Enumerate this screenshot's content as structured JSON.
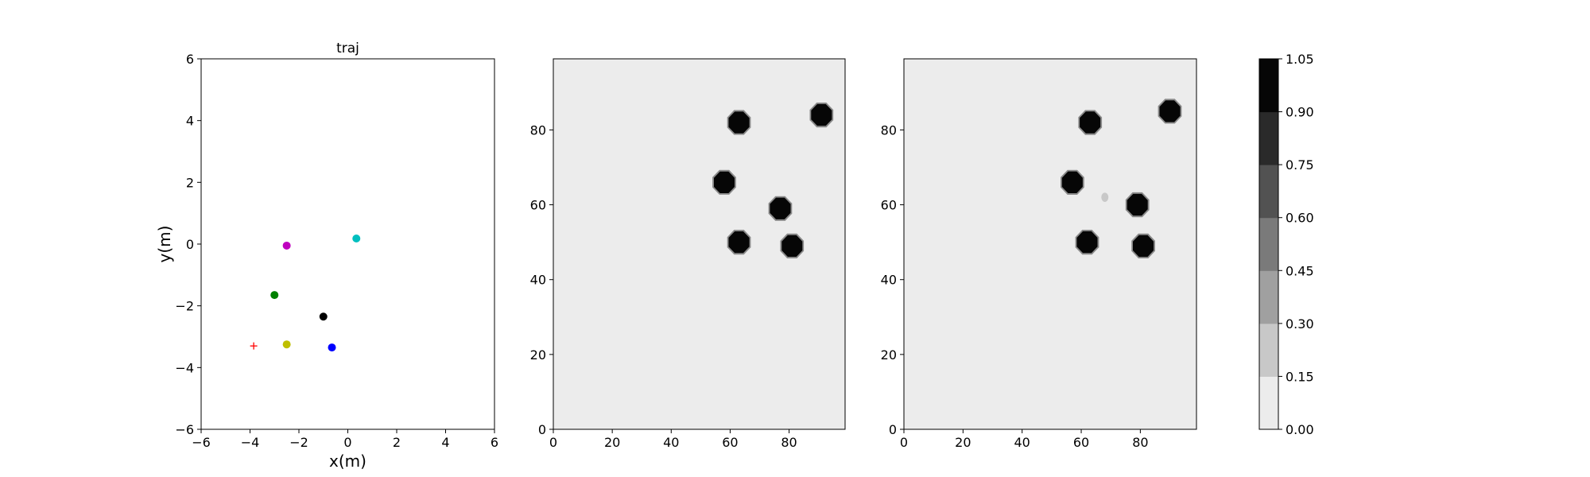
{
  "chart_data": [
    {
      "type": "scatter",
      "title": "traj",
      "xlabel": "x(m)",
      "ylabel": "y(m)",
      "xlim": [
        -6,
        6
      ],
      "ylim": [
        -6,
        6
      ],
      "xticks": [
        "−6",
        "−4",
        "−2",
        "0",
        "2",
        "4",
        "6"
      ],
      "yticks": [
        "−6",
        "−4",
        "−2",
        "0",
        "2",
        "4",
        "6"
      ],
      "grid": false,
      "points": [
        {
          "x": -2.5,
          "y": -0.05,
          "color": "#bf00bf",
          "marker": "circle"
        },
        {
          "x": 0.35,
          "y": 0.18,
          "color": "#00bfbf",
          "marker": "circle"
        },
        {
          "x": -3.0,
          "y": -1.65,
          "color": "#008000",
          "marker": "circle"
        },
        {
          "x": -1.0,
          "y": -2.35,
          "color": "#000000",
          "marker": "circle"
        },
        {
          "x": -2.5,
          "y": -3.25,
          "color": "#bfbf00",
          "marker": "circle"
        },
        {
          "x": -0.65,
          "y": -3.35,
          "color": "#0000ff",
          "marker": "circle"
        },
        {
          "x": -3.85,
          "y": -3.3,
          "color": "#ff0000",
          "marker": "plus"
        }
      ]
    },
    {
      "type": "heatmap",
      "xlim": [
        0,
        99
      ],
      "ylim": [
        0,
        99
      ],
      "xticks": [
        "0",
        "20",
        "40",
        "60",
        "80"
      ],
      "yticks": [
        "0",
        "20",
        "40",
        "60",
        "80"
      ],
      "background_value": 0.05,
      "blobs": [
        {
          "x": 63,
          "y": 82,
          "value": 1.0
        },
        {
          "x": 91,
          "y": 84,
          "value": 1.0
        },
        {
          "x": 58,
          "y": 66,
          "value": 1.0
        },
        {
          "x": 77,
          "y": 59,
          "value": 1.0
        },
        {
          "x": 63,
          "y": 50,
          "value": 1.0
        },
        {
          "x": 81,
          "y": 49,
          "value": 1.0
        }
      ]
    },
    {
      "type": "heatmap",
      "xlim": [
        0,
        99
      ],
      "ylim": [
        0,
        99
      ],
      "xticks": [
        "0",
        "20",
        "40",
        "60",
        "80"
      ],
      "yticks": [
        "0",
        "20",
        "40",
        "60",
        "80"
      ],
      "background_value": 0.05,
      "blobs": [
        {
          "x": 63,
          "y": 82,
          "value": 1.0
        },
        {
          "x": 90,
          "y": 85,
          "value": 0.9
        },
        {
          "x": 57,
          "y": 66,
          "value": 1.0
        },
        {
          "x": 68,
          "y": 62,
          "value": 0.2
        },
        {
          "x": 79,
          "y": 60,
          "value": 1.0
        },
        {
          "x": 62,
          "y": 50,
          "value": 1.0
        },
        {
          "x": 81,
          "y": 49,
          "value": 1.0
        }
      ]
    }
  ],
  "colorbar": {
    "ticks": [
      "0.00",
      "0.15",
      "0.30",
      "0.45",
      "0.60",
      "0.75",
      "0.90",
      "1.05"
    ],
    "range": [
      0,
      1.05
    ],
    "levels": [
      "#ececec",
      "#c8c8c8",
      "#a0a0a0",
      "#7a7a7a",
      "#525252",
      "#2a2a2a",
      "#060606"
    ]
  }
}
